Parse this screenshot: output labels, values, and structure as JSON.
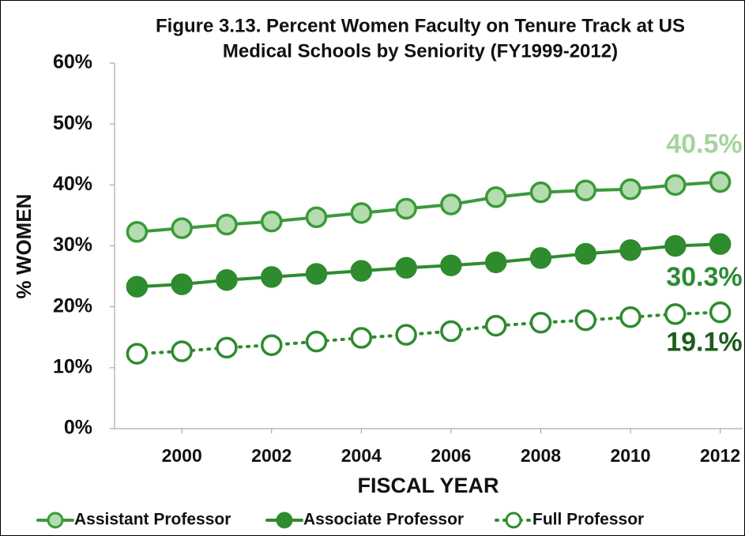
{
  "chart_data": {
    "type": "line",
    "title": [
      "Figure 3.13. Percent Women Faculty on Tenure Track at US",
      "Medical Schools by Seniority (FY1999-2012)"
    ],
    "x_label": "FISCAL YEAR",
    "y_label": "% WOMEN",
    "x": [
      1999,
      2000,
      2001,
      2002,
      2003,
      2004,
      2005,
      2006,
      2007,
      2008,
      2009,
      2010,
      2011,
      2012
    ],
    "xlim": [
      1998.5,
      2012.5
    ],
    "xticks": [
      2000,
      2002,
      2004,
      2006,
      2008,
      2010,
      2012
    ],
    "ylim": [
      0,
      60
    ],
    "yticks": [
      {
        "value": 0,
        "label": "0%"
      },
      {
        "value": 10,
        "label": "10%"
      },
      {
        "value": 20,
        "label": "20%"
      },
      {
        "value": 30,
        "label": "30%"
      },
      {
        "value": 40,
        "label": "40%"
      },
      {
        "value": 50,
        "label": "50%"
      },
      {
        "value": 60,
        "label": "60%"
      }
    ],
    "legend": "bottom",
    "series": [
      {
        "name": "Assistant Professor",
        "color": "#3a9a3a",
        "marker_fill": "#b5dcae",
        "line_style": "solid",
        "label_color": "#a6d49d",
        "values": [
          32.3,
          32.9,
          33.5,
          34.0,
          34.7,
          35.4,
          36.1,
          36.8,
          38.0,
          38.8,
          39.1,
          39.3,
          40.0,
          40.5
        ],
        "value_labels": [
          null,
          null,
          null,
          null,
          null,
          null,
          null,
          null,
          null,
          null,
          null,
          null,
          null,
          "40.5%"
        ]
      },
      {
        "name": "Associate Professor",
        "color": "#2e8b2e",
        "marker_fill": "#2e8b2e",
        "line_style": "solid",
        "label_color": "#2e8b34",
        "values": [
          23.3,
          23.7,
          24.4,
          24.9,
          25.4,
          25.9,
          26.4,
          26.8,
          27.3,
          28.0,
          28.7,
          29.3,
          30.0,
          30.3
        ],
        "value_labels": [
          null,
          null,
          null,
          null,
          null,
          null,
          null,
          null,
          null,
          null,
          null,
          null,
          null,
          "30.3%"
        ]
      },
      {
        "name": "Full Professor",
        "color": "#2e8b2e",
        "marker_fill": "#ffffff",
        "line_style": "dotted",
        "label_color": "#1e5c1e",
        "values": [
          12.3,
          12.7,
          13.3,
          13.7,
          14.3,
          14.9,
          15.4,
          16.0,
          16.9,
          17.4,
          17.8,
          18.3,
          18.8,
          19.1
        ],
        "value_labels": [
          null,
          null,
          null,
          null,
          null,
          null,
          null,
          null,
          null,
          null,
          null,
          null,
          null,
          "19.1%"
        ]
      }
    ]
  }
}
